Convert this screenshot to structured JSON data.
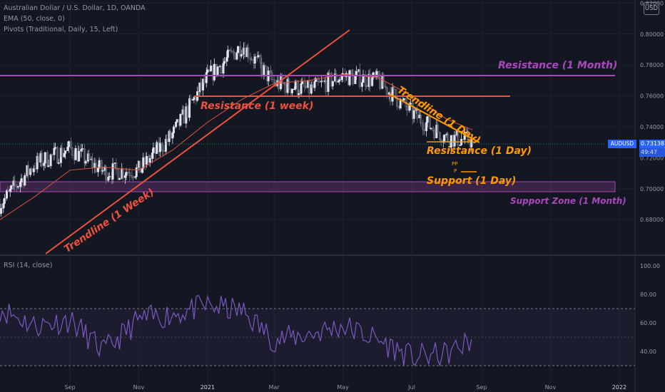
{
  "header": {
    "title": "Australian Dollar / U.S. Dollar, 1D, OANDA",
    "ema": "EMA (50, close, 0)",
    "pivots": "Pivots (Traditional, Daily, 15, Left)",
    "rsi": "RSI (14, close)",
    "currency": "USD"
  },
  "price_tag": {
    "symbol": "AUDUSD",
    "value": "0.73138",
    "countdown": "49:47"
  },
  "annotations": {
    "resistance_month": "Resistance (1 Month)",
    "resistance_week": "Resistance (1 week)",
    "trendline_day": "Trendline (1 Day)",
    "resistance_day": "Resistance (1 Day)",
    "support_day": "Support (1 Day)",
    "support_zone_month": "Support Zone (1 Month)",
    "trendline_week": "Trendline (1 Week)",
    "pivot_labels": [
      "PP",
      "P"
    ]
  },
  "colors": {
    "background": "#131722",
    "bull": "#e0e3eb",
    "bear": "#787b86",
    "ema": "#e0503c",
    "purple": "#ab47bc",
    "orange": "#ff9800",
    "red_line": "#f0503c",
    "rsi": "#7e57c2"
  },
  "chart_data": [
    {
      "type": "candlestick",
      "title": "Australian Dollar / U.S. Dollar, 1D, OANDA",
      "x_ticks": [
        "Sep",
        "Nov",
        "2021",
        "Mar",
        "May",
        "Jul",
        "Sep",
        "Nov",
        "2022"
      ],
      "y_ticks": [
        0.68,
        0.7,
        0.72,
        0.74,
        0.76,
        0.78,
        0.8,
        0.82
      ],
      "ylim": [
        0.658,
        0.822
      ],
      "current_value": 0.73138,
      "series": [
        {
          "name": "EMA (50, close, 0)",
          "type": "line",
          "x": [
            "2020-07-01",
            "2020-08-01",
            "2020-09-01",
            "2020-10-01",
            "2020-11-01",
            "2020-12-01",
            "2021-01-01",
            "2021-02-01",
            "2021-03-01",
            "2021-04-01",
            "2021-05-01",
            "2021-06-01",
            "2021-07-01",
            "2021-08-01",
            "2021-08-24"
          ],
          "values": [
            0.68,
            0.695,
            0.712,
            0.714,
            0.712,
            0.725,
            0.743,
            0.758,
            0.768,
            0.77,
            0.774,
            0.772,
            0.76,
            0.745,
            0.738
          ]
        },
        {
          "name": "AUDUSD",
          "type": "close",
          "x": [
            "2020-07-01",
            "2020-08-01",
            "2020-09-01",
            "2020-10-01",
            "2020-11-01",
            "2020-12-01",
            "2021-01-01",
            "2021-02-01",
            "2021-03-01",
            "2021-04-01",
            "2021-05-01",
            "2021-06-01",
            "2021-07-01",
            "2021-08-01",
            "2021-08-24"
          ],
          "values": [
            0.69,
            0.716,
            0.726,
            0.711,
            0.712,
            0.735,
            0.772,
            0.793,
            0.768,
            0.764,
            0.773,
            0.77,
            0.749,
            0.733,
            0.731
          ]
        }
      ],
      "levels": [
        {
          "label": "Resistance (1 Month)",
          "type": "horizontal",
          "value": 0.774
        },
        {
          "label": "Resistance (1 week)",
          "type": "horizontal",
          "value": 0.762,
          "from": "2021-01-01",
          "to": "2021-10-10"
        },
        {
          "label": "Support Zone (1 Month)",
          "type": "zone",
          "from_value": 0.702,
          "to_value": 0.708
        },
        {
          "label": "Resistance (1 Day)",
          "type": "horizontal",
          "value": 0.731
        },
        {
          "label": "Support (1 Day)",
          "type": "horizontal",
          "value": 0.715
        },
        {
          "label": "Trendline (1 Week)",
          "type": "trendline",
          "from": [
            "2020-08-20",
            0.665
          ],
          "to": [
            "2021-05-20",
            0.803
          ]
        },
        {
          "label": "Trendline (1 Day)",
          "type": "trendline",
          "from": [
            "2021-06-25",
            0.763
          ],
          "to": [
            "2021-08-30",
            0.732
          ]
        }
      ]
    },
    {
      "type": "line",
      "title": "RSI (14, close)",
      "y_ticks": [
        40,
        60,
        80,
        100
      ],
      "ylim": [
        20,
        100
      ],
      "bands": [
        30,
        70
      ],
      "series": [
        {
          "name": "RSI (14, close)",
          "x": [
            "2020-07-01",
            "2020-08-01",
            "2020-09-01",
            "2020-10-01",
            "2020-11-01",
            "2020-12-01",
            "2021-01-01",
            "2021-02-01",
            "2021-03-01",
            "2021-04-01",
            "2021-05-01",
            "2021-06-01",
            "2021-07-01",
            "2021-08-01",
            "2021-08-24"
          ],
          "values": [
            70,
            58,
            62,
            40,
            62,
            66,
            72,
            68,
            48,
            52,
            58,
            48,
            36,
            38,
            48
          ]
        }
      ]
    }
  ]
}
